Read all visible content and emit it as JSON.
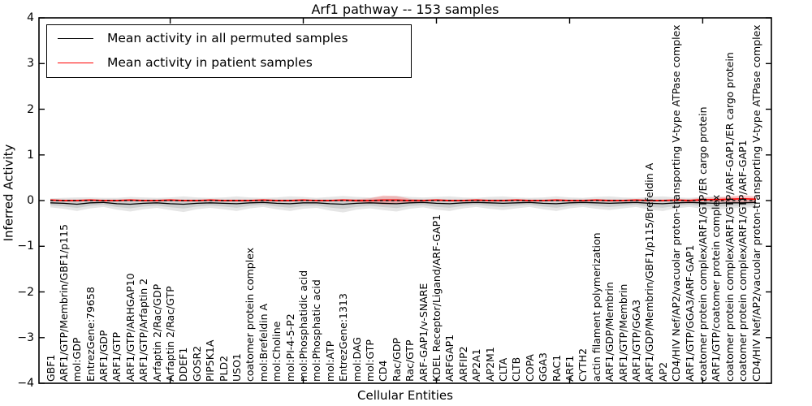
{
  "legend": {
    "items": [
      {
        "label": "Mean activity in all permuted samples",
        "color": "#000000"
      },
      {
        "label": "Mean activity in patient samples",
        "color": "#ff0000"
      }
    ]
  },
  "chart_data": {
    "type": "line",
    "title": "Arf1 pathway -- 153 samples",
    "xlabel": "Cellular Entities",
    "ylabel": "Inferred Activity",
    "ylim": [
      -4,
      4
    ],
    "yticks": [
      -4,
      -3,
      -2,
      -1,
      0,
      1,
      2,
      3,
      4
    ],
    "x_major_tick_indices": [
      9,
      19,
      29,
      39,
      49
    ],
    "grid": false,
    "legend_position": "upper-left",
    "categories": [
      "GBF1",
      "ARF1/GTP/Membrin/GBF1/p115",
      "mol:GDP",
      "EntrezGene:79658",
      "ARF1/GDP",
      "ARF1/GTP",
      "ARF1/GTP/ARHGAP10",
      "ARF1/GTP/Arfaptin 2",
      "Arfaptin 2/Rac/GDP",
      "Arfaptin 2/Rac/GTP",
      "DDEF1",
      "GOSR2",
      "PIP5K1A",
      "PLD2",
      "USO1",
      "coatomer protein complex",
      "mol:Brefeldin A",
      "mol:Choline",
      "mol:PI-4-5-P2",
      "mol:Phosphatidic acid",
      "mol:Phosphatic acid",
      "mol:ATP",
      "EntrezGene:1313",
      "mol:DAG",
      "mol:GTP",
      "CD4",
      "Rac/GDP",
      "Rac/GTP",
      "ARF-GAP1/v-SNARE",
      "KDEL Receptor/Ligand/ARF-GAP1",
      "ARFGAP1",
      "ARFIP2",
      "AP2A1",
      "AP2M1",
      "CLTA",
      "CLTB",
      "COPA",
      "GGA3",
      "RAC1",
      "ARF1",
      "CYTH2",
      "actin filament polymerization",
      "ARF1/GDP/Membrin",
      "ARF1/GTP/Membrin",
      "ARF1/GTP/GGA3",
      "ARF1/GDP/Membrin/GBF1/p115/Brefeldin A",
      "AP2",
      "CD4/HIV Nef/AP2/vacuolar proton-transporting V-type ATPase complex",
      "ARF1/GTP/GGA3/ARF-GAP1",
      "coatomer protein complex/ARF1/GTP/ER cargo protein",
      "ARF1/GTP/coatomer protein complex",
      "coatomer protein complex/ARF1/GTP/ARF-GAP1/ER cargo protein",
      "coatomer protein complex/ARF1/GTP/ARF-GAP1",
      "CD4/HIV Nef/AP2/vacuolar proton-transporting V-type ATPase complex"
    ],
    "series": [
      {
        "name": "Mean activity in all permuted samples",
        "color": "#000000",
        "values": [
          -0.05,
          -0.06,
          -0.08,
          -0.05,
          -0.04,
          -0.07,
          -0.08,
          -0.06,
          -0.05,
          -0.07,
          -0.08,
          -0.06,
          -0.05,
          -0.06,
          -0.07,
          -0.05,
          -0.04,
          -0.06,
          -0.07,
          -0.05,
          -0.05,
          -0.07,
          -0.08,
          -0.06,
          -0.05,
          -0.06,
          -0.07,
          -0.05,
          -0.04,
          -0.06,
          -0.07,
          -0.05,
          -0.04,
          -0.05,
          -0.06,
          -0.05,
          -0.04,
          -0.06,
          -0.07,
          -0.05,
          -0.04,
          -0.05,
          -0.06,
          -0.05,
          -0.04,
          -0.06,
          -0.07,
          -0.05,
          -0.04,
          -0.05,
          -0.06,
          -0.05,
          -0.05,
          -0.04
        ],
        "band": [
          0.1,
          0.12,
          0.15,
          0.12,
          0.1,
          0.13,
          0.16,
          0.13,
          0.11,
          0.14,
          0.17,
          0.13,
          0.11,
          0.13,
          0.16,
          0.12,
          0.1,
          0.13,
          0.16,
          0.13,
          0.11,
          0.15,
          0.18,
          0.14,
          0.12,
          0.15,
          0.17,
          0.13,
          0.11,
          0.14,
          0.16,
          0.12,
          0.1,
          0.13,
          0.15,
          0.12,
          0.1,
          0.13,
          0.16,
          0.12,
          0.1,
          0.13,
          0.15,
          0.12,
          0.1,
          0.14,
          0.16,
          0.12,
          0.1,
          0.13,
          0.15,
          0.12,
          0.11,
          0.1
        ]
      },
      {
        "name": "Mean activity in patient samples",
        "color": "#ff0000",
        "values": [
          0.01,
          0.0,
          0.0,
          0.01,
          0.0,
          0.0,
          0.01,
          0.0,
          0.0,
          0.01,
          0.0,
          0.0,
          0.01,
          0.0,
          0.0,
          0.0,
          0.01,
          0.0,
          0.0,
          0.01,
          0.0,
          0.0,
          0.01,
          0.0,
          0.0,
          0.01,
          0.01,
          0.0,
          0.0,
          0.01,
          0.0,
          0.0,
          0.01,
          0.0,
          0.0,
          0.01,
          0.0,
          0.0,
          0.01,
          0.0,
          0.0,
          0.01,
          0.0,
          0.0,
          0.01,
          0.0,
          0.0,
          0.01,
          0.0,
          0.02,
          0.02,
          0.03,
          0.04,
          0.03
        ],
        "band": [
          0.02,
          0.02,
          0.02,
          0.02,
          0.02,
          0.02,
          0.02,
          0.02,
          0.02,
          0.02,
          0.02,
          0.02,
          0.02,
          0.02,
          0.02,
          0.02,
          0.02,
          0.02,
          0.02,
          0.02,
          0.02,
          0.02,
          0.02,
          0.03,
          0.05,
          0.1,
          0.09,
          0.04,
          0.02,
          0.02,
          0.02,
          0.02,
          0.02,
          0.02,
          0.02,
          0.02,
          0.02,
          0.02,
          0.02,
          0.02,
          0.02,
          0.02,
          0.02,
          0.02,
          0.02,
          0.02,
          0.02,
          0.02,
          0.03,
          0.04,
          0.05,
          0.06,
          0.08,
          0.06
        ]
      }
    ],
    "zero_line": {
      "value": 0,
      "style": "dashed",
      "color": "#000000"
    },
    "band_colors": {
      "permuted": "rgba(0,0,0,0.10)",
      "patient": "rgba(255,0,0,0.20)"
    }
  }
}
